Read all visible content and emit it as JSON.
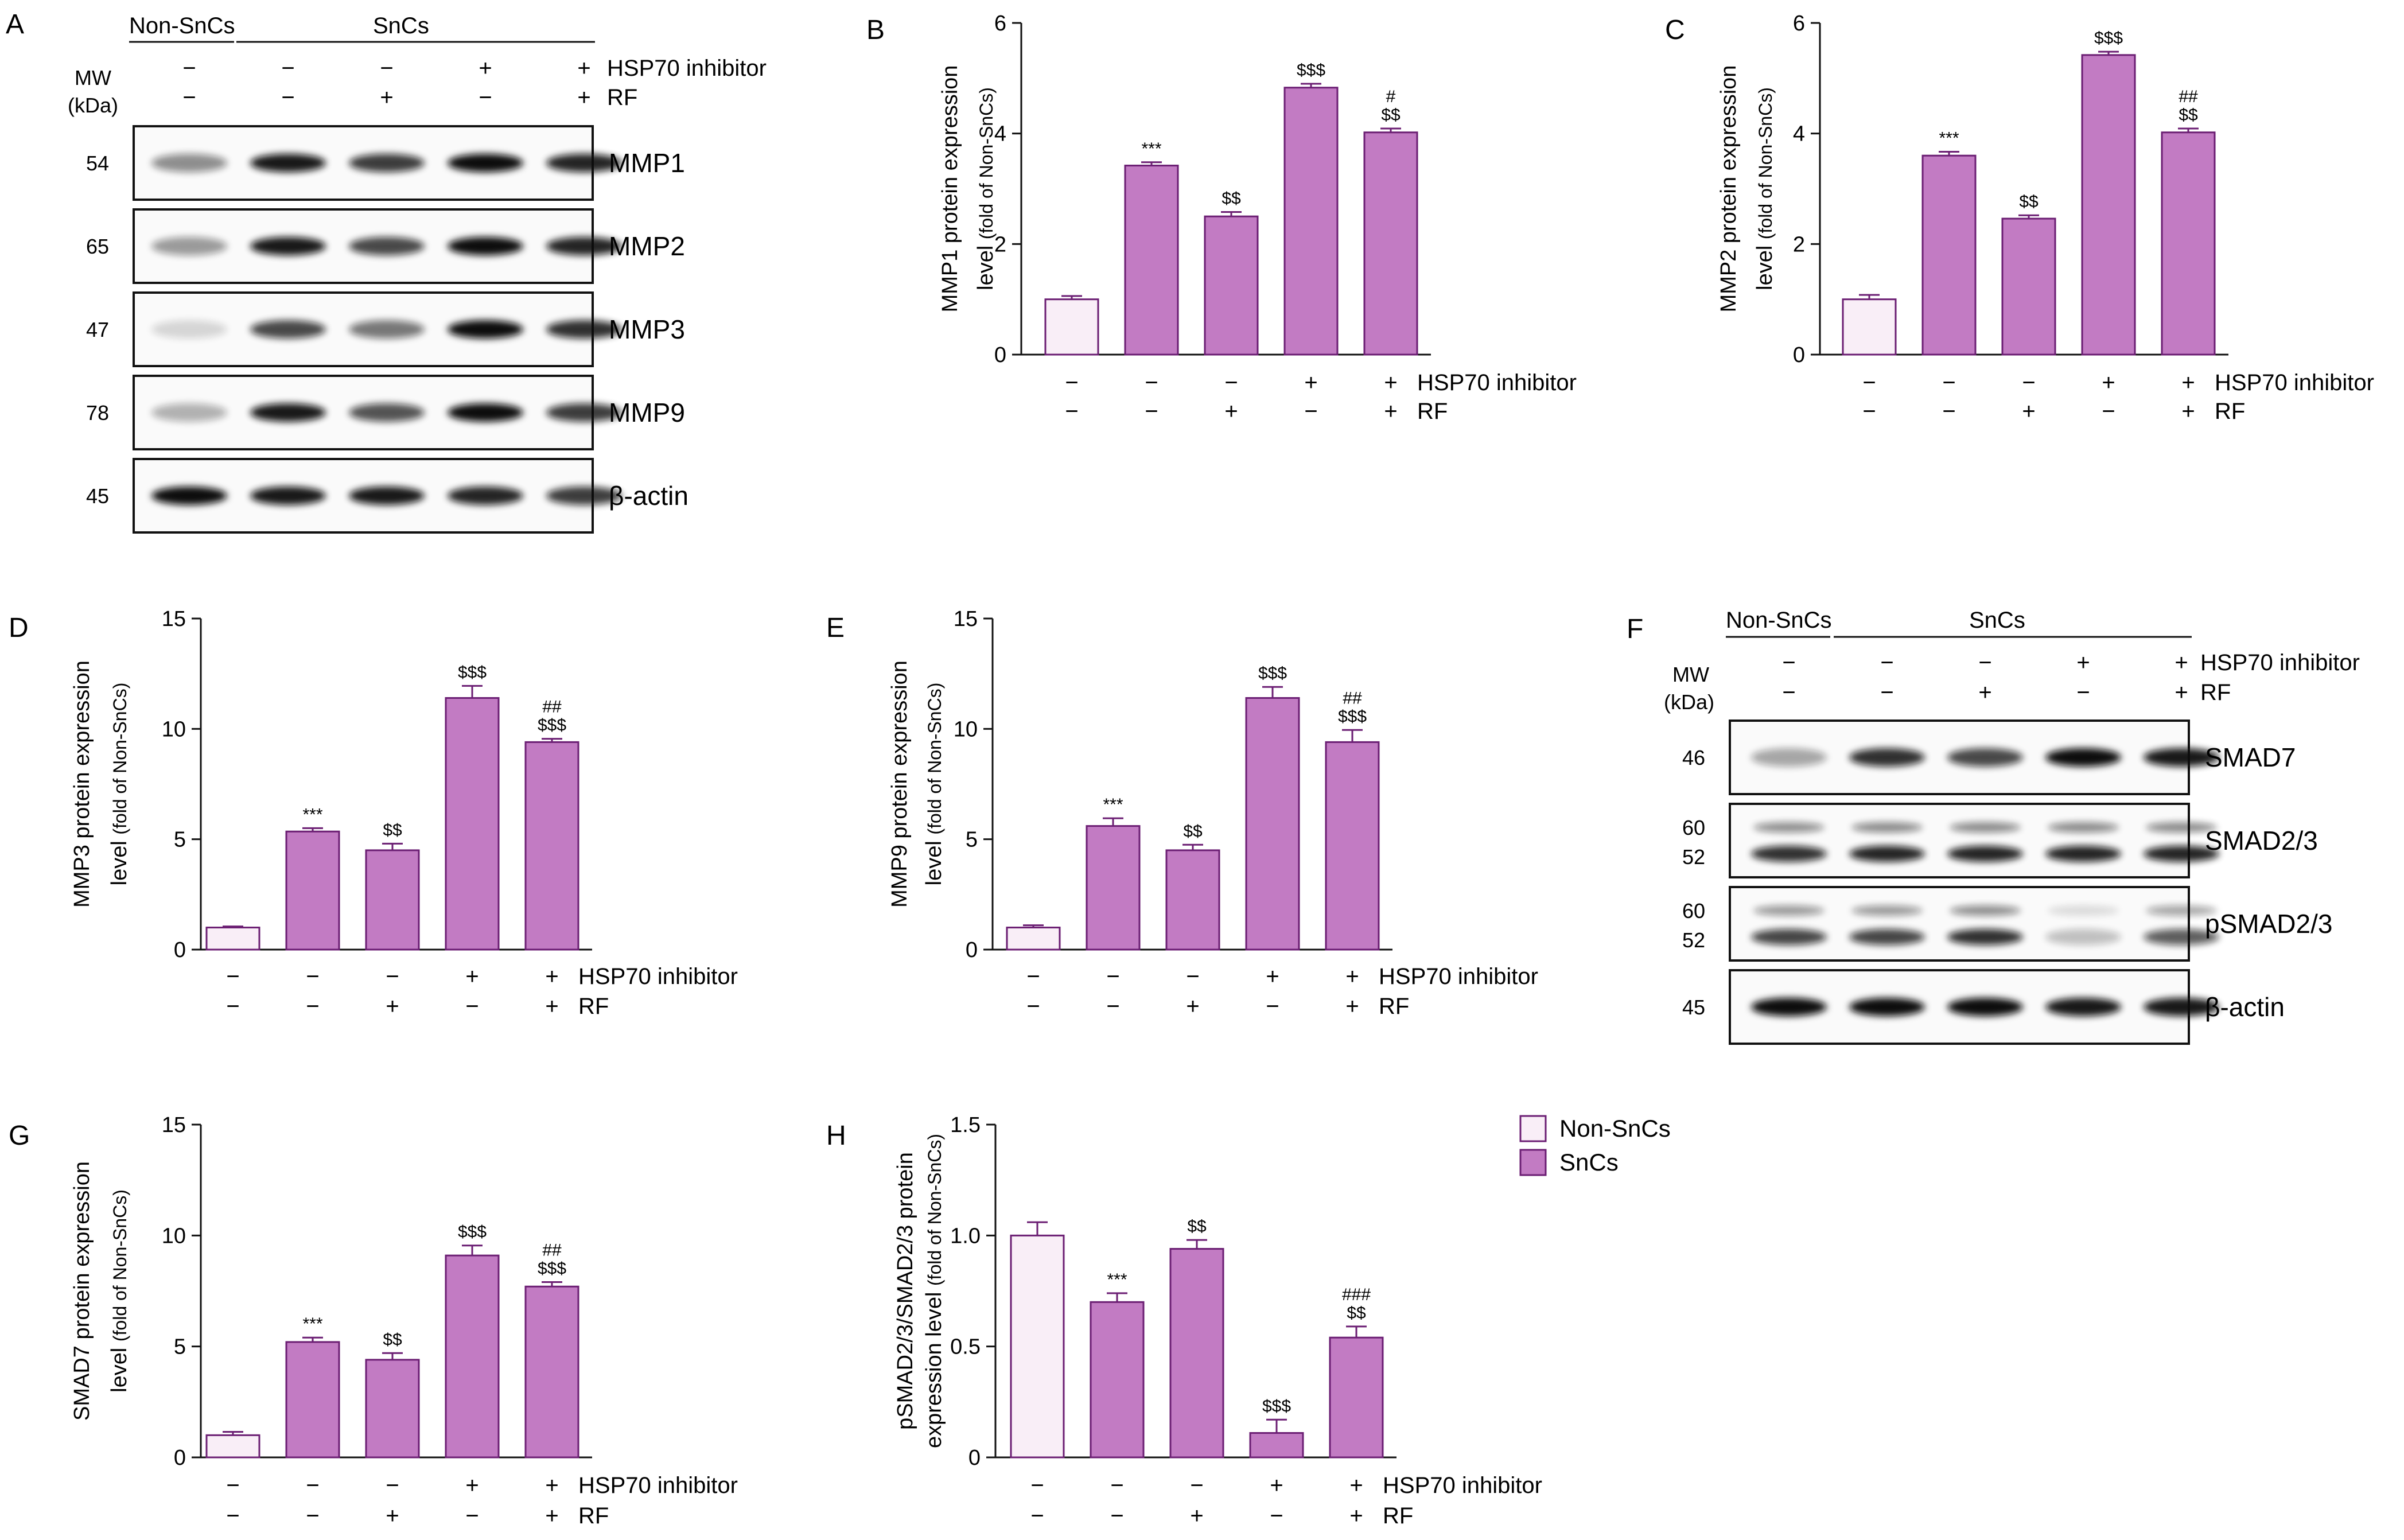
{
  "conditions": {
    "hsp70": [
      "−",
      "−",
      "−",
      "+",
      "+"
    ],
    "rf": [
      "−",
      "−",
      "+",
      "−",
      "+"
    ],
    "hsp70_label": "HSP70 inhibitor",
    "rf_label": "RF"
  },
  "blot_A": {
    "letter": "A",
    "non_sncs": "Non-SnCs",
    "sncs": "SnCs",
    "mw_label": "MW",
    "kda_label": "(kDa)",
    "rows": [
      {
        "mw": "54",
        "name": "MMP1"
      },
      {
        "mw": "65",
        "name": "MMP2"
      },
      {
        "mw": "47",
        "name": "MMP3"
      },
      {
        "mw": "78",
        "name": "MMP9"
      },
      {
        "mw": "45",
        "name": "β-actin"
      }
    ]
  },
  "blot_F": {
    "letter": "F",
    "non_sncs": "Non-SnCs",
    "sncs": "SnCs",
    "mw_label": "MW",
    "kda_label": "(kDa)",
    "rows": [
      {
        "mw": "46",
        "mw2": "",
        "name": "SMAD7"
      },
      {
        "mw": "60",
        "mw2": "52",
        "name": "SMAD2/3"
      },
      {
        "mw": "60",
        "mw2": "52",
        "name": "pSMAD2/3"
      },
      {
        "mw": "45",
        "mw2": "",
        "name": "β-actin"
      }
    ]
  },
  "legend": {
    "items": [
      {
        "label": "Non-SnCs",
        "color": "#F9EEF7"
      },
      {
        "label": "SnCs",
        "color": "#C27BC3"
      }
    ]
  },
  "colors": {
    "non_sncs_fill": "#F9EEF7",
    "sncs_fill": "#C27BC3",
    "bar_edge": "#6B1E73"
  },
  "chart_data": [
    {
      "id": "B",
      "type": "bar",
      "ylabel_main": "MMP1 protein expression",
      "ylabel_line2": "level",
      "ylabel_small": "(fold of Non-SnCs)",
      "ylim": [
        0,
        6
      ],
      "yticks": [
        "0",
        "2",
        "4",
        "6"
      ],
      "ytick_values": [
        0,
        2,
        4,
        6
      ],
      "values": [
        1.0,
        3.42,
        2.5,
        4.83,
        4.02
      ],
      "errors": [
        0.06,
        0.06,
        0.08,
        0.07,
        0.07
      ],
      "sig_top": [
        "",
        "***",
        "$$",
        "$$$",
        "#"
      ],
      "sig_bottom": [
        "",
        "",
        "",
        "",
        "$$"
      ]
    },
    {
      "id": "C",
      "type": "bar",
      "ylabel_main": "MMP2 protein expression",
      "ylabel_line2": "level",
      "ylabel_small": "(fold of Non-SnCs)",
      "ylim": [
        0,
        6
      ],
      "yticks": [
        "0",
        "2",
        "4",
        "6"
      ],
      "ytick_values": [
        0,
        2,
        4,
        6
      ],
      "values": [
        1.0,
        3.6,
        2.46,
        5.42,
        4.02
      ],
      "errors": [
        0.08,
        0.07,
        0.06,
        0.06,
        0.07
      ],
      "sig_top": [
        "",
        "***",
        "$$",
        "$$$",
        "##"
      ],
      "sig_bottom": [
        "",
        "",
        "",
        "",
        "$$"
      ]
    },
    {
      "id": "D",
      "type": "bar",
      "ylabel_main": "MMP3 protein expression",
      "ylabel_line2": "level",
      "ylabel_small": "(fold of Non-SnCs)",
      "ylim": [
        0,
        15
      ],
      "yticks": [
        "0",
        "5",
        "10",
        "15"
      ],
      "ytick_values": [
        0,
        5,
        10,
        15
      ],
      "values": [
        1.0,
        5.35,
        4.5,
        11.4,
        9.4
      ],
      "errors": [
        0.05,
        0.15,
        0.3,
        0.55,
        0.15
      ],
      "sig_top": [
        "",
        "***",
        "$$",
        "$$$",
        "##"
      ],
      "sig_bottom": [
        "",
        "",
        "",
        "",
        "$$$"
      ]
    },
    {
      "id": "E",
      "type": "bar",
      "ylabel_main": "MMP9 protein expression",
      "ylabel_line2": "level",
      "ylabel_small": "(fold of Non-SnCs)",
      "ylim": [
        0,
        15
      ],
      "yticks": [
        "0",
        "5",
        "10",
        "15"
      ],
      "ytick_values": [
        0,
        5,
        10,
        15
      ],
      "values": [
        1.0,
        5.6,
        4.5,
        11.4,
        9.4
      ],
      "errors": [
        0.1,
        0.35,
        0.25,
        0.5,
        0.55
      ],
      "sig_top": [
        "",
        "***",
        "$$",
        "$$$",
        "##"
      ],
      "sig_bottom": [
        "",
        "",
        "",
        "",
        "$$$"
      ]
    },
    {
      "id": "G",
      "type": "bar",
      "ylabel_main": "SMAD7 protein expression",
      "ylabel_line2": "level",
      "ylabel_small": "(fold of Non-SnCs)",
      "ylim": [
        0,
        15
      ],
      "yticks": [
        "0",
        "5",
        "10",
        "15"
      ],
      "ytick_values": [
        0,
        5,
        10,
        15
      ],
      "values": [
        1.0,
        5.2,
        4.4,
        9.1,
        7.7
      ],
      "errors": [
        0.15,
        0.2,
        0.3,
        0.45,
        0.2
      ],
      "sig_top": [
        "",
        "***",
        "$$",
        "$$$",
        "##"
      ],
      "sig_bottom": [
        "",
        "",
        "",
        "",
        "$$$"
      ]
    },
    {
      "id": "H",
      "type": "bar",
      "ylabel_main": "pSMAD2/3/SMAD2/3 protein",
      "ylabel_line2": "expression level",
      "ylabel_small": "(fold of Non-SnCs)",
      "ylim": [
        0,
        1.5
      ],
      "yticks": [
        "0",
        "0.5",
        "1.0",
        "1.5"
      ],
      "ytick_values": [
        0,
        0.5,
        1.0,
        1.5
      ],
      "values": [
        1.0,
        0.7,
        0.94,
        0.11,
        0.54
      ],
      "errors": [
        0.06,
        0.04,
        0.04,
        0.06,
        0.05
      ],
      "sig_top": [
        "",
        "***",
        "$$",
        "$$$",
        "###"
      ],
      "sig_bottom": [
        "",
        "",
        "",
        "",
        "$$"
      ]
    }
  ],
  "blot_intensities": {
    "A": [
      [
        0.45,
        0.95,
        0.8,
        1.0,
        0.9
      ],
      [
        0.4,
        0.95,
        0.75,
        1.0,
        0.9
      ],
      [
        0.15,
        0.75,
        0.55,
        1.0,
        0.85
      ],
      [
        0.3,
        0.95,
        0.7,
        1.0,
        0.8
      ],
      [
        1.0,
        0.95,
        0.95,
        0.9,
        0.8
      ]
    ],
    "F": [
      [
        0.35,
        0.85,
        0.75,
        1.0,
        0.95
      ],
      [
        0.9,
        0.95,
        0.95,
        0.95,
        0.95
      ],
      [
        0.8,
        0.8,
        0.9,
        0.25,
        0.7
      ],
      [
        1.0,
        1.0,
        1.0,
        0.95,
        0.95
      ]
    ]
  }
}
